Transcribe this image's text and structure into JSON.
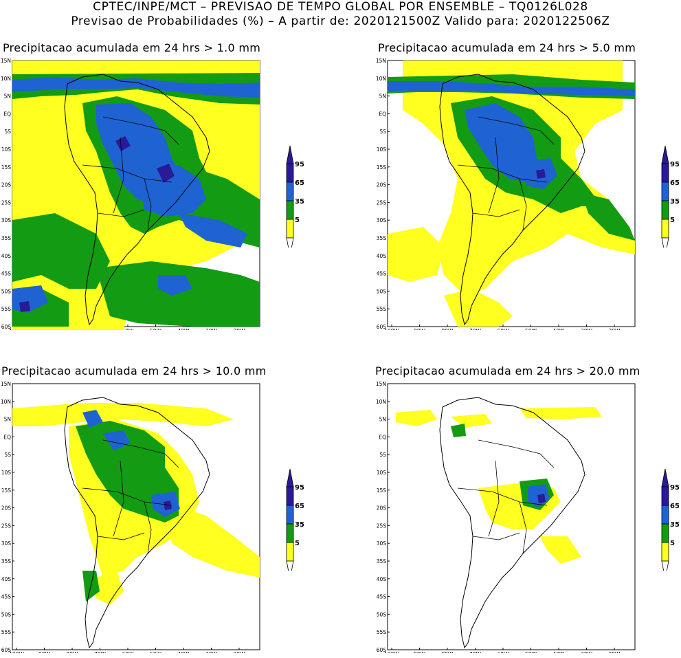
{
  "header": {
    "line1": "CPTEC/INPE/MCT – PREVISAO DE TEMPO GLOBAL POR ENSEMBLE – TQ0126L028",
    "line2": "Previsao de Probabilidades (%) –   A partir de: 2020121500Z  Valido para: 2020122506Z"
  },
  "axes": {
    "lat_labels": [
      "15N",
      "10N",
      "5N",
      "EQ",
      "5S",
      "10S",
      "15S",
      "20S",
      "25S",
      "30S",
      "35S",
      "40S",
      "45S",
      "50S",
      "55S",
      "60S"
    ],
    "lon_labels": [
      "100W",
      "90W",
      "80W",
      "70W",
      "60W",
      "50W",
      "40W",
      "30W",
      "20W"
    ]
  },
  "colorbar": {
    "levels": [
      "95",
      "65",
      "35",
      "5"
    ],
    "colors": {
      "c95": "#2a1a96",
      "c65": "#1f63d2",
      "c35": "#139b13",
      "c5": "#ffff20",
      "outline": "#000000"
    }
  },
  "panels": [
    {
      "title": "Precipitacao acumulada em 24 hrs > 1.0 mm",
      "threshold": "1.0 mm"
    },
    {
      "title": "Precipitacao acumulada em 24 hrs > 5.0 mm",
      "threshold": "5.0 mm"
    },
    {
      "title": "Precipitacao acumulada em 24 hrs > 10.0 mm",
      "threshold": "10.0 mm"
    },
    {
      "title": "Precipitacao acumulada em 24 hrs > 20.0 mm",
      "threshold": "20.0 mm"
    }
  ]
}
